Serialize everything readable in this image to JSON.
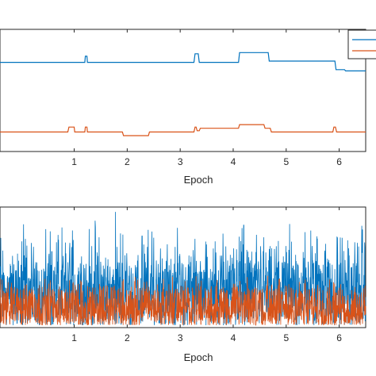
{
  "chart_data": [
    {
      "type": "line",
      "xlabel": "Epoch",
      "xlim": [
        -0.4,
        6.5
      ],
      "xticks": [
        "1",
        "2",
        "3",
        "4",
        "5",
        "6"
      ],
      "ylim": [
        0,
        1
      ],
      "grid": false,
      "legend": {
        "placement": "top-right",
        "entries": [
          "",
          ""
        ]
      },
      "series": [
        {
          "color": "#0072bd",
          "points": [
            [
              -0.4,
              0.73
            ],
            [
              1.2,
              0.73
            ],
            [
              1.21,
              0.78
            ],
            [
              1.24,
              0.78
            ],
            [
              1.25,
              0.73
            ],
            [
              3.26,
              0.73
            ],
            [
              3.28,
              0.8
            ],
            [
              3.34,
              0.8
            ],
            [
              3.36,
              0.73
            ],
            [
              4.1,
              0.73
            ],
            [
              4.12,
              0.81
            ],
            [
              4.66,
              0.81
            ],
            [
              4.68,
              0.74
            ],
            [
              5.92,
              0.74
            ],
            [
              5.94,
              0.67
            ],
            [
              6.1,
              0.67
            ],
            [
              6.12,
              0.66
            ],
            [
              6.5,
              0.66
            ]
          ]
        },
        {
          "color": "#d95319",
          "points": [
            [
              -0.4,
              0.16
            ],
            [
              0.88,
              0.16
            ],
            [
              0.9,
              0.2
            ],
            [
              1.0,
              0.2
            ],
            [
              1.01,
              0.16
            ],
            [
              1.2,
              0.16
            ],
            [
              1.21,
              0.2
            ],
            [
              1.24,
              0.2
            ],
            [
              1.25,
              0.16
            ],
            [
              1.91,
              0.16
            ],
            [
              1.93,
              0.13
            ],
            [
              2.4,
              0.13
            ],
            [
              2.42,
              0.16
            ],
            [
              3.26,
              0.16
            ],
            [
              3.28,
              0.2
            ],
            [
              3.3,
              0.2
            ],
            [
              3.32,
              0.17
            ],
            [
              3.36,
              0.17
            ],
            [
              3.38,
              0.19
            ],
            [
              4.1,
              0.19
            ],
            [
              4.12,
              0.22
            ],
            [
              4.58,
              0.22
            ],
            [
              4.6,
              0.19
            ],
            [
              4.7,
              0.19
            ],
            [
              4.72,
              0.16
            ],
            [
              5.88,
              0.16
            ],
            [
              5.9,
              0.2
            ],
            [
              5.93,
              0.2
            ],
            [
              5.95,
              0.16
            ],
            [
              6.5,
              0.16
            ]
          ]
        }
      ]
    },
    {
      "type": "line",
      "xlabel": "Epoch",
      "xlim": [
        -0.4,
        6.5
      ],
      "xticks": [
        "1",
        "2",
        "3",
        "4",
        "5",
        "6"
      ],
      "ylim": [
        0,
        1
      ],
      "grid": false,
      "series": [
        {
          "color": "#0072bd",
          "description": "noisy signal",
          "baseline": 0.33,
          "spread": 0.55,
          "peaks": [
            [
              1.78,
              0.96
            ],
            [
              4.2,
              0.85
            ],
            [
              2.28,
              0.76
            ],
            [
              0.58,
              0.63
            ]
          ]
        },
        {
          "color": "#d95319",
          "description": "noisy signal",
          "baseline": 0.1,
          "spread": 0.32
        }
      ]
    }
  ]
}
